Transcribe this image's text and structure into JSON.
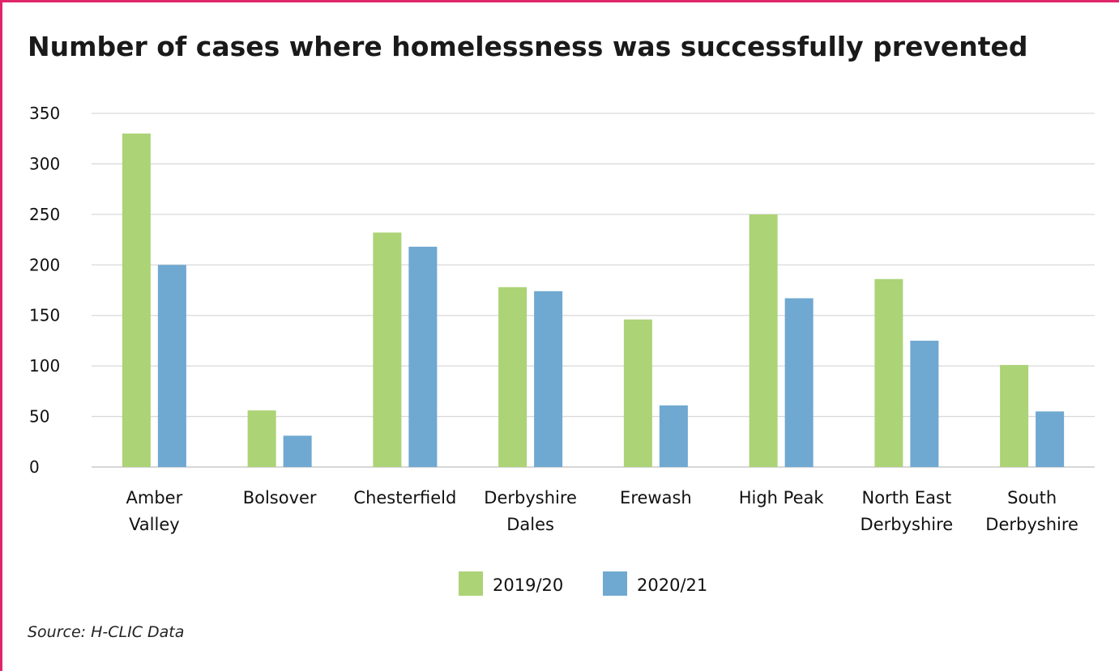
{
  "chart_data": {
    "type": "bar",
    "title": "Number of cases where homelessness was successfully prevented",
    "categories": [
      [
        "Amber",
        "Valley"
      ],
      [
        "Bolsover"
      ],
      [
        "Chesterfield"
      ],
      [
        "Derbyshire",
        "Dales"
      ],
      [
        "Erewash"
      ],
      [
        "High Peak"
      ],
      [
        "North East",
        "Derbyshire"
      ],
      [
        "South",
        "Derbyshire"
      ]
    ],
    "series": [
      {
        "name": "2019/20",
        "color": "#acd376",
        "values": [
          330,
          56,
          232,
          178,
          146,
          250,
          186,
          101
        ]
      },
      {
        "name": "2020/21",
        "color": "#6fa8d0",
        "values": [
          200,
          31,
          218,
          174,
          61,
          167,
          125,
          55
        ]
      }
    ],
    "ylim": [
      0,
      350
    ],
    "yticks": [
      0,
      50,
      100,
      150,
      200,
      250,
      300,
      350
    ],
    "grid": true,
    "legend_position": "bottom",
    "xlabel": "",
    "ylabel": ""
  },
  "source": "Source: H-CLIC Data",
  "accent_color": "#e0266b"
}
